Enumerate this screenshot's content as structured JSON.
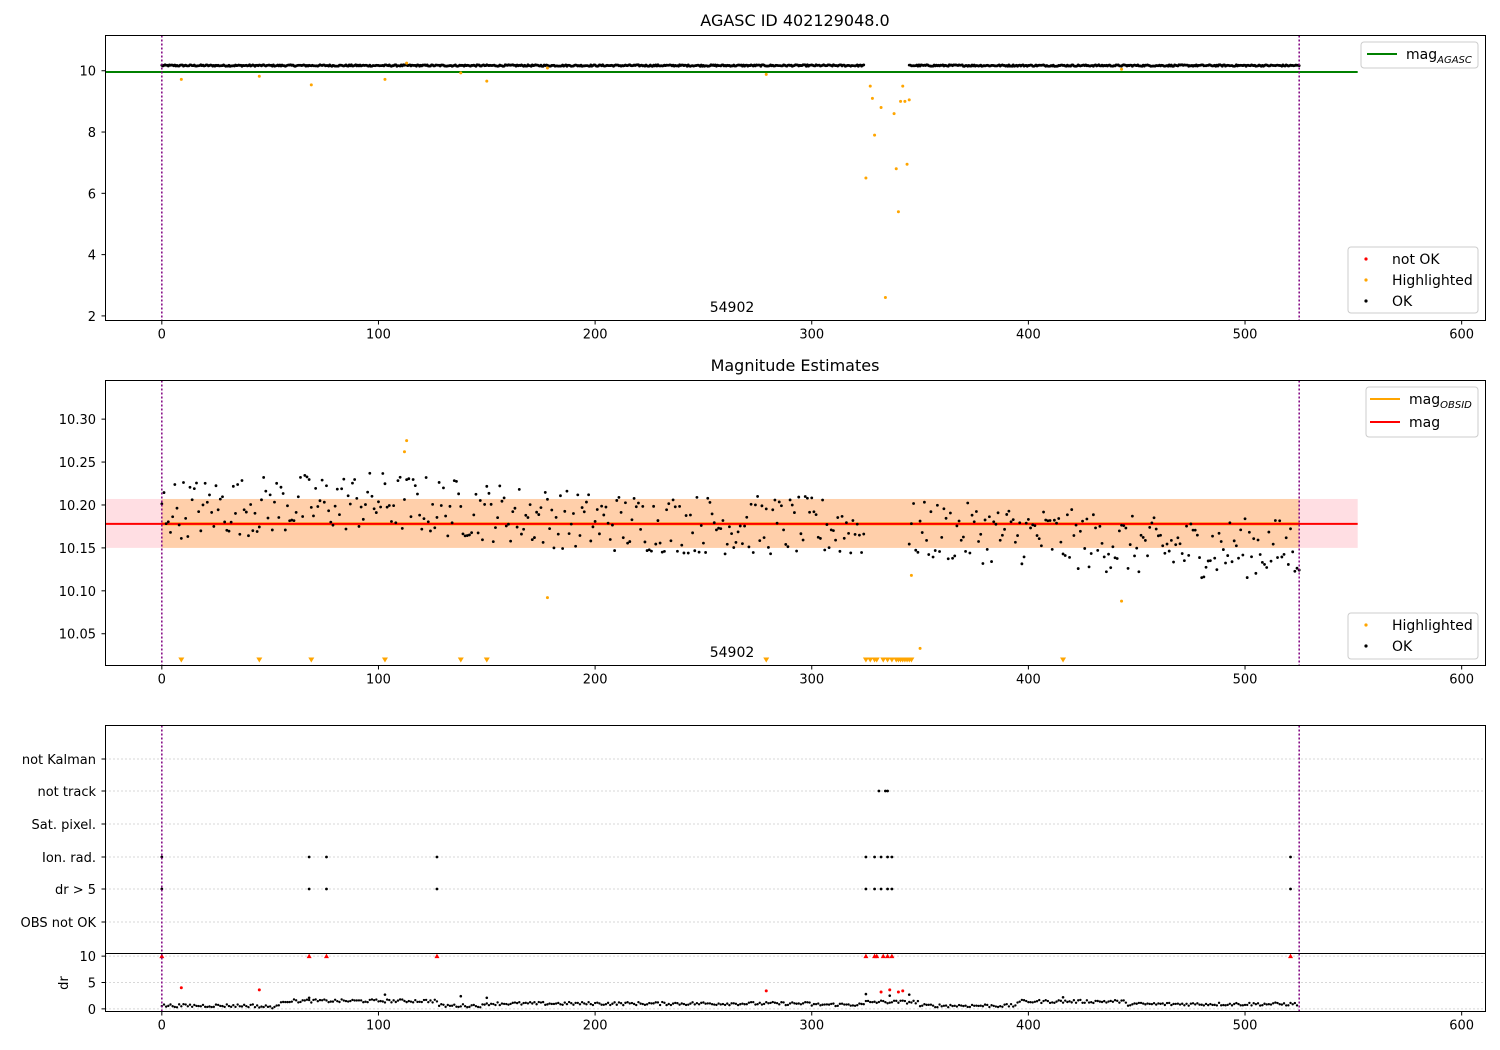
{
  "chart_data": [
    {
      "type": "scatter",
      "title": "AGASC ID 402129048.0",
      "xlabel": "",
      "ylabel": "",
      "xlim": [
        -26,
        611
      ],
      "ylim": [
        1.85,
        11.15
      ],
      "xticks": [
        0,
        100,
        200,
        300,
        400,
        500,
        600
      ],
      "yticks": [
        2,
        4,
        6,
        8,
        10
      ],
      "grid": false,
      "annotation": {
        "text": "54902",
        "x": 262,
        "y": 2.1
      },
      "obs_boundaries": [
        0,
        525
      ],
      "hline": {
        "name": "mag_AGASC",
        "y": 9.96,
        "x_range": [
          -26,
          552
        ],
        "color": "#008000"
      },
      "main_band": {
        "y_center": 10.17,
        "amplitude": 0.025,
        "gap": [
          324,
          345
        ],
        "points_per_unit": 2
      },
      "highlighted": [
        {
          "x": 9,
          "y": 9.72
        },
        {
          "x": 45,
          "y": 9.82
        },
        {
          "x": 69,
          "y": 9.54
        },
        {
          "x": 103,
          "y": 9.72
        },
        {
          "x": 113,
          "y": 10.25
        },
        {
          "x": 138,
          "y": 9.93
        },
        {
          "x": 150,
          "y": 9.66
        },
        {
          "x": 178,
          "y": 10.09
        },
        {
          "x": 279,
          "y": 9.88
        },
        {
          "x": 325,
          "y": 6.5
        },
        {
          "x": 327,
          "y": 9.5
        },
        {
          "x": 328,
          "y": 9.1
        },
        {
          "x": 329,
          "y": 7.9
        },
        {
          "x": 332,
          "y": 8.8
        },
        {
          "x": 334,
          "y": 2.6
        },
        {
          "x": 338,
          "y": 8.6
        },
        {
          "x": 339,
          "y": 6.8
        },
        {
          "x": 340,
          "y": 5.4
        },
        {
          "x": 341,
          "y": 9.0
        },
        {
          "x": 342,
          "y": 9.5
        },
        {
          "x": 343,
          "y": 9.0
        },
        {
          "x": 344,
          "y": 6.95
        },
        {
          "x": 345,
          "y": 9.05
        },
        {
          "x": 443,
          "y": 10.05
        }
      ],
      "legend_top": [
        {
          "label": "mag",
          "sub": "AGASC",
          "color": "#008000"
        }
      ],
      "legend_bottom": [
        {
          "label": "not OK",
          "color": "#ff0000"
        },
        {
          "label": "Highlighted",
          "color": "#ffa500"
        },
        {
          "label": "OK",
          "color": "#000000"
        }
      ]
    },
    {
      "type": "scatter",
      "title": "Magnitude Estimates",
      "xlabel": "",
      "ylabel": "",
      "xlim": [
        -26,
        611
      ],
      "ylim": [
        10.013,
        10.345
      ],
      "xticks": [
        0,
        100,
        200,
        300,
        400,
        500,
        600
      ],
      "yticks": [
        10.05,
        10.1,
        10.15,
        10.2,
        10.25,
        10.3
      ],
      "ytick_labels": [
        "10.05",
        "10.10",
        "10.15",
        "10.20",
        "10.25",
        "10.30"
      ],
      "grid": false,
      "annotation": {
        "text": "54902",
        "x": 262,
        "y": 10.025
      },
      "obs_boundaries": [
        0,
        525
      ],
      "mag": 10.178,
      "mag_band": {
        "low": 10.15,
        "high": 10.207,
        "x_range": [
          -26,
          552
        ],
        "color": "#ffb6c1"
      },
      "mag_obsid": 10.178,
      "mag_obsid_band": {
        "low": 10.15,
        "high": 10.207,
        "x_range": [
          0,
          525
        ],
        "color": "#ffa500"
      },
      "ok_trend": [
        [
          0,
          10.195
        ],
        [
          100,
          10.205
        ],
        [
          200,
          10.18
        ],
        [
          300,
          10.175
        ],
        [
          340,
          10.17
        ],
        [
          400,
          10.165
        ],
        [
          460,
          10.15
        ],
        [
          525,
          10.15
        ]
      ],
      "highlighted": [
        {
          "x": 112,
          "y": 10.262
        },
        {
          "x": 113,
          "y": 10.275
        },
        {
          "x": 178,
          "y": 10.092
        },
        {
          "x": 346,
          "y": 10.118
        },
        {
          "x": 350,
          "y": 10.033
        },
        {
          "x": 443,
          "y": 10.088
        }
      ],
      "below_range_markers_x": [
        9,
        45,
        69,
        103,
        138,
        150,
        279,
        325,
        327,
        329,
        330,
        333,
        335,
        337,
        339,
        340,
        341,
        342,
        343,
        344,
        345,
        346,
        416
      ],
      "legend_top": [
        {
          "label": "mag",
          "sub": "OBSID",
          "color": "#ffa500"
        },
        {
          "label": "mag",
          "sub": "",
          "color": "#ff0000"
        }
      ],
      "legend_bottom": [
        {
          "label": "Highlighted",
          "color": "#ffa500"
        },
        {
          "label": "OK",
          "color": "#000000"
        }
      ]
    },
    {
      "type": "scatter",
      "title": "",
      "xlabel": "",
      "ylabel": "",
      "xlim": [
        -26,
        611
      ],
      "categories": [
        "not Kalman",
        "not track",
        "Sat. pixel.",
        "Ion. rad.",
        "dr > 5",
        "OBS not OK"
      ],
      "grid": true,
      "obs_boundaries": [
        0,
        525
      ],
      "flags": {
        "not track": [
          331,
          334,
          335
        ],
        "Ion. rad.": [
          0,
          68,
          76,
          127,
          325,
          329,
          332,
          335,
          337,
          521
        ],
        "dr > 5": [
          0,
          68,
          76,
          127,
          325,
          329,
          332,
          335,
          337,
          521
        ]
      }
    },
    {
      "type": "scatter",
      "title": "",
      "xlabel": "",
      "ylabel": "dr",
      "xlim": [
        -26,
        611
      ],
      "ylim": [
        -0.5,
        10.5
      ],
      "xticks": [
        0,
        100,
        200,
        300,
        400,
        500,
        600
      ],
      "yticks": [
        0,
        5,
        10
      ],
      "grid": true,
      "obs_boundaries": [
        0,
        525
      ],
      "segments": [
        [
          0,
          45,
          0.6
        ],
        [
          45,
          55,
          0.4
        ],
        [
          55,
          128,
          1.5
        ],
        [
          128,
          150,
          0.6
        ],
        [
          150,
          300,
          1.0
        ],
        [
          300,
          325,
          0.8
        ],
        [
          325,
          350,
          1.3
        ],
        [
          350,
          395,
          0.6
        ],
        [
          395,
          445,
          1.4
        ],
        [
          445,
          525,
          0.9
        ]
      ],
      "not_ok": [
        {
          "x": 0,
          "y": 10
        },
        {
          "x": 9,
          "y": 4
        },
        {
          "x": 45,
          "y": 3.6
        },
        {
          "x": 68,
          "y": 10
        },
        {
          "x": 76,
          "y": 10
        },
        {
          "x": 127,
          "y": 10
        },
        {
          "x": 279,
          "y": 3.4
        },
        {
          "x": 325,
          "y": 10
        },
        {
          "x": 329,
          "y": 10
        },
        {
          "x": 330,
          "y": 10
        },
        {
          "x": 332,
          "y": 3.2
        },
        {
          "x": 333,
          "y": 10
        },
        {
          "x": 335,
          "y": 10
        },
        {
          "x": 336,
          "y": 3.6
        },
        {
          "x": 337,
          "y": 10
        },
        {
          "x": 340,
          "y": 3.2
        },
        {
          "x": 342,
          "y": 3.4
        },
        {
          "x": 521,
          "y": 10
        }
      ],
      "ok_spikes": [
        {
          "x": 68,
          "y": 2.1
        },
        {
          "x": 103,
          "y": 2.7
        },
        {
          "x": 138,
          "y": 2.4
        },
        {
          "x": 150,
          "y": 2.1
        },
        {
          "x": 325,
          "y": 2.8
        },
        {
          "x": 336,
          "y": 2.5
        },
        {
          "x": 345,
          "y": 2.7
        },
        {
          "x": 416,
          "y": 2.2
        }
      ]
    }
  ]
}
